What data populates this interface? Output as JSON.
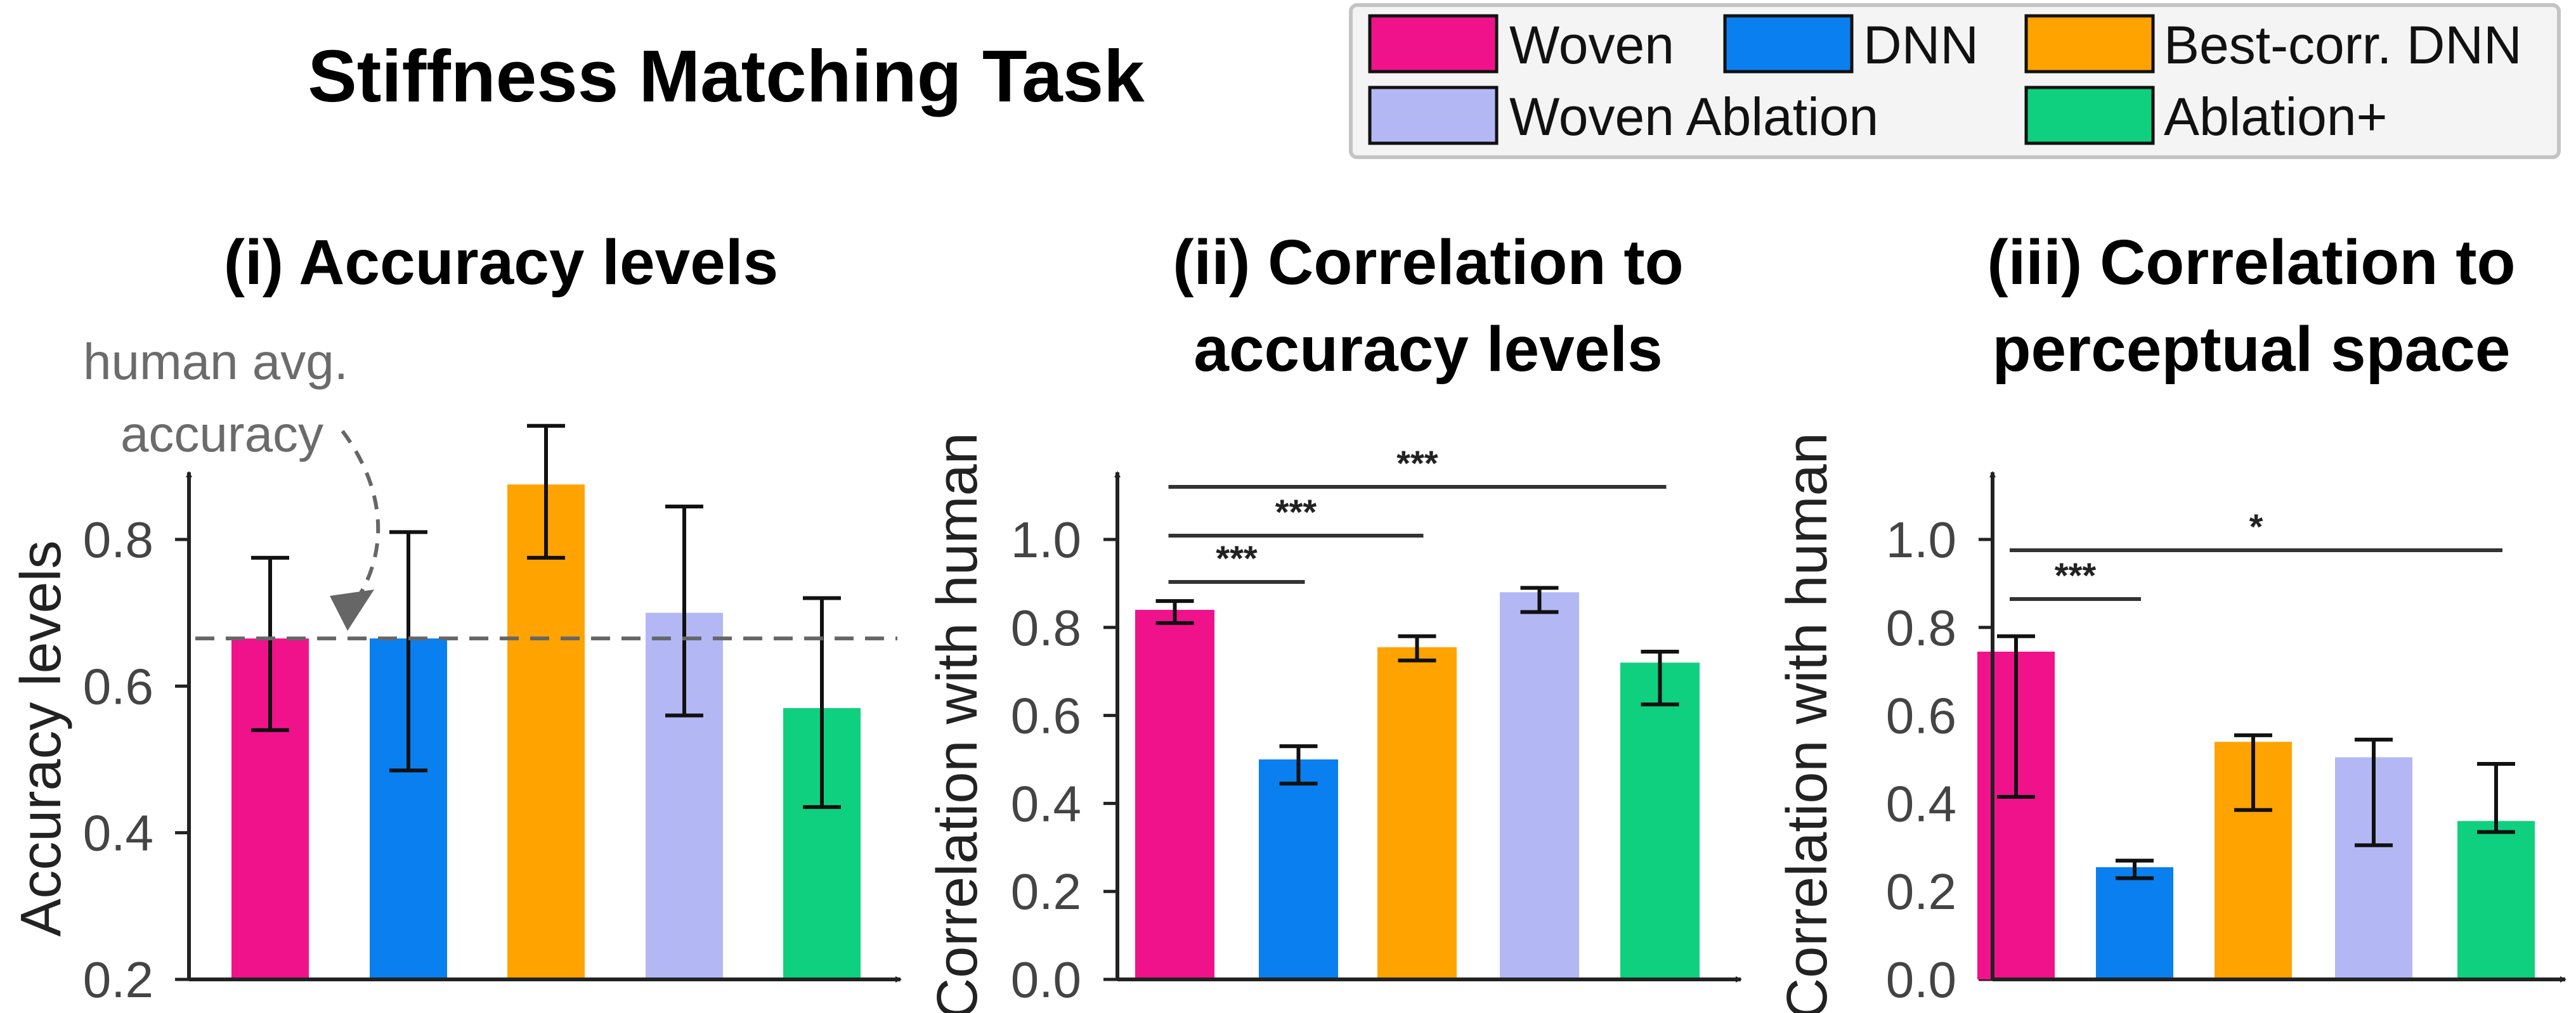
{
  "title": "Stiffness Matching Task",
  "legend": {
    "entries": [
      {
        "label": "Woven",
        "color": "#f0128a"
      },
      {
        "label": "DNN",
        "color": "#0a7ff0"
      },
      {
        "label": "Best-corr. DNN",
        "color": "#ffa300"
      },
      {
        "label": "Woven Ablation",
        "color": "#b3b8f5"
      },
      {
        "label": "Ablation+",
        "color": "#0fd07e"
      }
    ]
  },
  "chart_data": [
    {
      "type": "bar",
      "title_lines": [
        "(i) Accuracy levels"
      ],
      "ylabel": "Accuracy levels",
      "xlabel": "",
      "ylim": [
        0.2,
        0.9
      ],
      "yticks": [
        "0.2",
        "0.4",
        "0.6",
        "0.8"
      ],
      "categories": [
        "Woven",
        "DNN",
        "Best-corr. DNN",
        "Woven Ablation",
        "Ablation+"
      ],
      "values": [
        0.665,
        0.665,
        0.875,
        0.7,
        0.57
      ],
      "errors": [
        [
          0.54,
          0.775
        ],
        [
          0.485,
          0.81
        ],
        [
          0.775,
          0.955
        ],
        [
          0.56,
          0.845
        ],
        [
          0.435,
          0.72
        ]
      ],
      "reference_line": {
        "value": 0.665,
        "label_lines": [
          "human avg.",
          "accuracy"
        ]
      },
      "significance": []
    },
    {
      "type": "bar",
      "title_lines": [
        "(ii) Correlation to",
        "accuracy levels"
      ],
      "ylabel": "Correlation with human",
      "xlabel": "",
      "ylim": [
        0.0,
        1.15
      ],
      "yticks": [
        "0.0",
        "0.2",
        "0.4",
        "0.6",
        "0.8",
        "1.0"
      ],
      "categories": [
        "Woven",
        "DNN",
        "Best-corr. DNN",
        "Woven Ablation",
        "Ablation+"
      ],
      "values": [
        0.84,
        0.5,
        0.755,
        0.88,
        0.72
      ],
      "errors": [
        [
          0.81,
          0.86
        ],
        [
          0.445,
          0.53
        ],
        [
          0.725,
          0.78
        ],
        [
          0.835,
          0.89
        ],
        [
          0.625,
          0.745
        ]
      ],
      "significance": [
        {
          "from": 0,
          "to": 1,
          "label": "***"
        },
        {
          "from": 0,
          "to": 2,
          "label": "***"
        },
        {
          "from": 0,
          "to": 4,
          "label": "***"
        }
      ]
    },
    {
      "type": "bar",
      "title_lines": [
        "(iii) Correlation to",
        "perceptual space"
      ],
      "ylabel": "Correlation with human",
      "xlabel": "",
      "ylim": [
        0.0,
        1.15
      ],
      "yticks": [
        "0.0",
        "0.2",
        "0.4",
        "0.6",
        "0.8",
        "1.0"
      ],
      "categories": [
        "Woven",
        "DNN",
        "Best-corr. DNN",
        "Woven Ablation",
        "Ablation+"
      ],
      "values": [
        0.745,
        0.255,
        0.54,
        0.505,
        0.36
      ],
      "errors": [
        [
          0.415,
          0.78
        ],
        [
          0.23,
          0.27
        ],
        [
          0.385,
          0.555
        ],
        [
          0.305,
          0.545
        ],
        [
          0.335,
          0.49
        ]
      ],
      "significance": [
        {
          "from": 0,
          "to": 1,
          "label": "***"
        },
        {
          "from": 0,
          "to": 4,
          "label": "*"
        }
      ]
    }
  ]
}
